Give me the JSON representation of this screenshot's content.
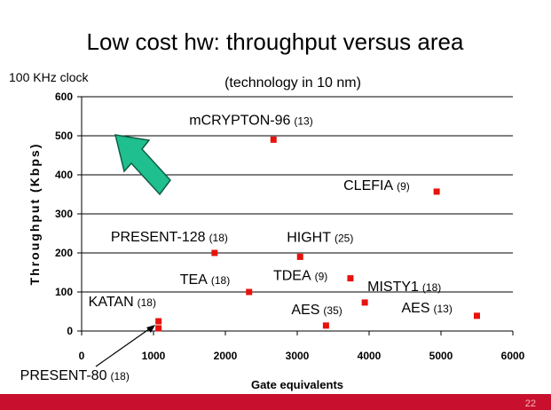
{
  "page_number": "22",
  "chart_data": {
    "type": "scatter",
    "title": "Low cost hw: throughput versus area",
    "subtitle": "(technology in 10 nm)",
    "annotations": [
      "100 KHz clock"
    ],
    "xlabel": "Gate equivalents",
    "ylabel": "Throughput (Kbps)",
    "color": "#e8120c",
    "point_labels": [
      "mCRYPTON-96",
      "CLEFIA",
      "PRESENT-128",
      "HIGHT",
      "TEA",
      "TDEA",
      "MISTY1",
      "AES",
      "AES",
      "KATAN",
      "PRESENT-80"
    ],
    "point_notes": [
      "(13)",
      "(9)",
      "(18)",
      "(25)",
      "(18)",
      "(9)",
      "(18)",
      "(35)",
      "(13)",
      "(18)",
      "(18)"
    ],
    "x": [
      2670,
      4940,
      1850,
      3040,
      2330,
      3740,
      3940,
      3400,
      5500,
      1070,
      1070
    ],
    "values": [
      490,
      357,
      200,
      190,
      100,
      135,
      73,
      14,
      39,
      25,
      7
    ],
    "xlim": [
      0,
      6000
    ],
    "xticks": [
      0,
      1000,
      2000,
      3000,
      4000,
      5000,
      6000
    ],
    "ylim": [
      0,
      600
    ],
    "yticks": [
      0,
      100,
      200,
      300,
      400,
      500,
      600
    ],
    "grid": true
  }
}
